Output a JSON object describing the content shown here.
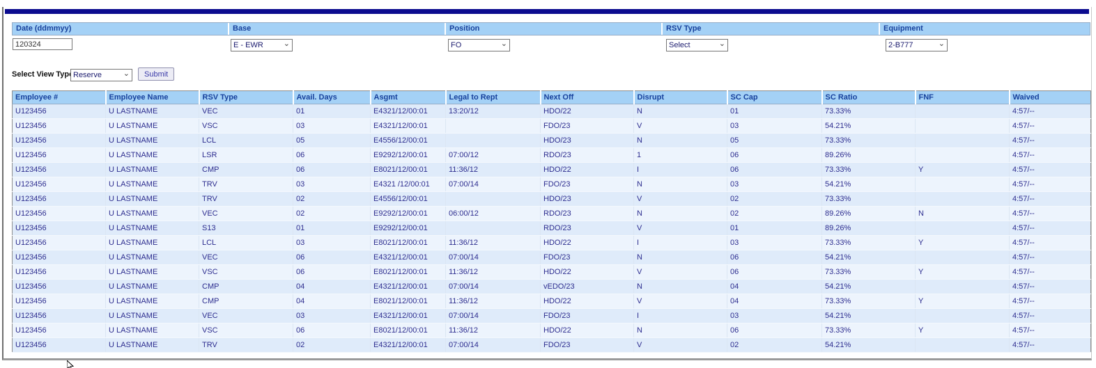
{
  "icons": {
    "chevron_down": "⌄"
  },
  "colors": {
    "top_bar": "#0b0b8f",
    "panel_header_bg": "#a4d1f6",
    "header_text": "#16409c",
    "row_odd_bg": "#dfebfa",
    "row_even_bg": "#edf4fd",
    "cell_text": "#2d2d8f"
  },
  "filters": {
    "fields": [
      {
        "label": "Date (ddmmyy)",
        "type": "input",
        "value": "120324"
      },
      {
        "label": "Base",
        "type": "select",
        "value": "E - EWR"
      },
      {
        "label": "Position",
        "type": "select",
        "value": "FO"
      },
      {
        "label": "RSV Type",
        "type": "select",
        "value": "Select"
      },
      {
        "label": "Equipment",
        "type": "select",
        "value": "2-B777"
      }
    ]
  },
  "view_type": {
    "label": "Select View Type",
    "value": "Reserve",
    "submit_label": "Submit"
  },
  "table": {
    "columns": [
      "Employee #",
      "Employee Name",
      "RSV Type",
      "Avail. Days",
      "Asgmt",
      "Legal to Rept",
      "Next Off",
      "Disrupt",
      "SC Cap",
      "SC Ratio",
      "FNF",
      "Waived"
    ],
    "rows": [
      [
        "U123456",
        "U LASTNAME",
        "VEC",
        "01",
        "E4321/12/00:01",
        "13:20/12",
        "HDO/22",
        "N",
        "01",
        "73.33%",
        "",
        "4:57/--"
      ],
      [
        "U123456",
        "U LASTNAME",
        "VSC",
        "03",
        "E4321/12/00:01",
        "",
        "FDO/23",
        "V",
        "03",
        "54.21%",
        "",
        "4:57/--"
      ],
      [
        "U123456",
        "U LASTNAME",
        "LCL",
        "05",
        "E4556/12/00:01",
        "",
        "HDO/23",
        "N",
        "05",
        "73.33%",
        "",
        "4:57/--"
      ],
      [
        "U123456",
        "U LASTNAME",
        "LSR",
        "06",
        "E9292/12/00:01",
        "07:00/12",
        "RDO/23",
        "1",
        "06",
        "89.26%",
        "",
        "4:57/--"
      ],
      [
        "U123456",
        "U LASTNAME",
        "CMP",
        "06",
        "E8021/12/00:01",
        "11:36/12",
        "HDO/22",
        "I",
        "06",
        "73.33%",
        "Y",
        "4:57/--"
      ],
      [
        "U123456",
        "U LASTNAME",
        "TRV",
        "03",
        "E4321 /12/00:01",
        "07:00/14",
        "FDO/23",
        "N",
        "03",
        "54.21%",
        "",
        "4:57/--"
      ],
      [
        "U123456",
        "U LASTNAME",
        "TRV",
        "02",
        "E4556/12/00:01",
        "",
        "HDO/23",
        "V",
        "02",
        "73.33%",
        "",
        "4:57/--"
      ],
      [
        "U123456",
        "U LASTNAME",
        "VEC",
        "02",
        "E9292/12/00:01",
        "06:00/12",
        "RDO/23",
        "N",
        "02",
        "89.26%",
        "N",
        "4:57/--"
      ],
      [
        "U123456",
        "U LASTNAME",
        "S13",
        "01",
        "E9292/12/00:01",
        "",
        "RDO/23",
        "V",
        "01",
        "89.26%",
        "",
        "4:57/--"
      ],
      [
        "U123456",
        "U LASTNAME",
        "LCL",
        "03",
        "E8021/12/00:01",
        "11:36/12",
        "HDO/22",
        "I",
        "03",
        "73.33%",
        "Y",
        "4:57/--"
      ],
      [
        "U123456",
        "U LASTNAME",
        "VEC",
        "06",
        "E4321/12/00:01",
        "07:00/14",
        "FDO/23",
        "N",
        "06",
        "54.21%",
        "",
        "4:57/--"
      ],
      [
        "U123456",
        "U LASTNAME",
        "VSC",
        "06",
        "E8021/12/00:01",
        "11:36/12",
        "HDO/22",
        "V",
        "06",
        "73.33%",
        "Y",
        "4:57/--"
      ],
      [
        "U123456",
        "U LASTNAME",
        "CMP",
        "04",
        "E4321/12/00:01",
        "07:00/14",
        "vEDO/23",
        "N",
        "04",
        "54.21%",
        "",
        "4:57/--"
      ],
      [
        "U123456",
        "U LASTNAME",
        "CMP",
        "04",
        "E8021/12/00:01",
        "11:36/12",
        "HDO/22",
        "V",
        "04",
        "73.33%",
        "Y",
        "4:57/--"
      ],
      [
        "U123456",
        "U LASTNAME",
        "VEC",
        "03",
        "E4321/12/00:01",
        "07:00/14",
        "FDO/23",
        "I",
        "03",
        "54.21%",
        "",
        "4:57/--"
      ],
      [
        "U123456",
        "U LASTNAME",
        "VSC",
        "06",
        "E8021/12/00:01",
        "11:36/12",
        "HDO/22",
        "N",
        "06",
        "73.33%",
        "Y",
        "4:57/--"
      ],
      [
        "U123456",
        "U LASTNAME",
        "TRV",
        "02",
        "E4321/12/00:01",
        "07:00/14",
        "FDO/23",
        "V",
        "02",
        "54.21%",
        "",
        "4:57/--"
      ]
    ]
  }
}
